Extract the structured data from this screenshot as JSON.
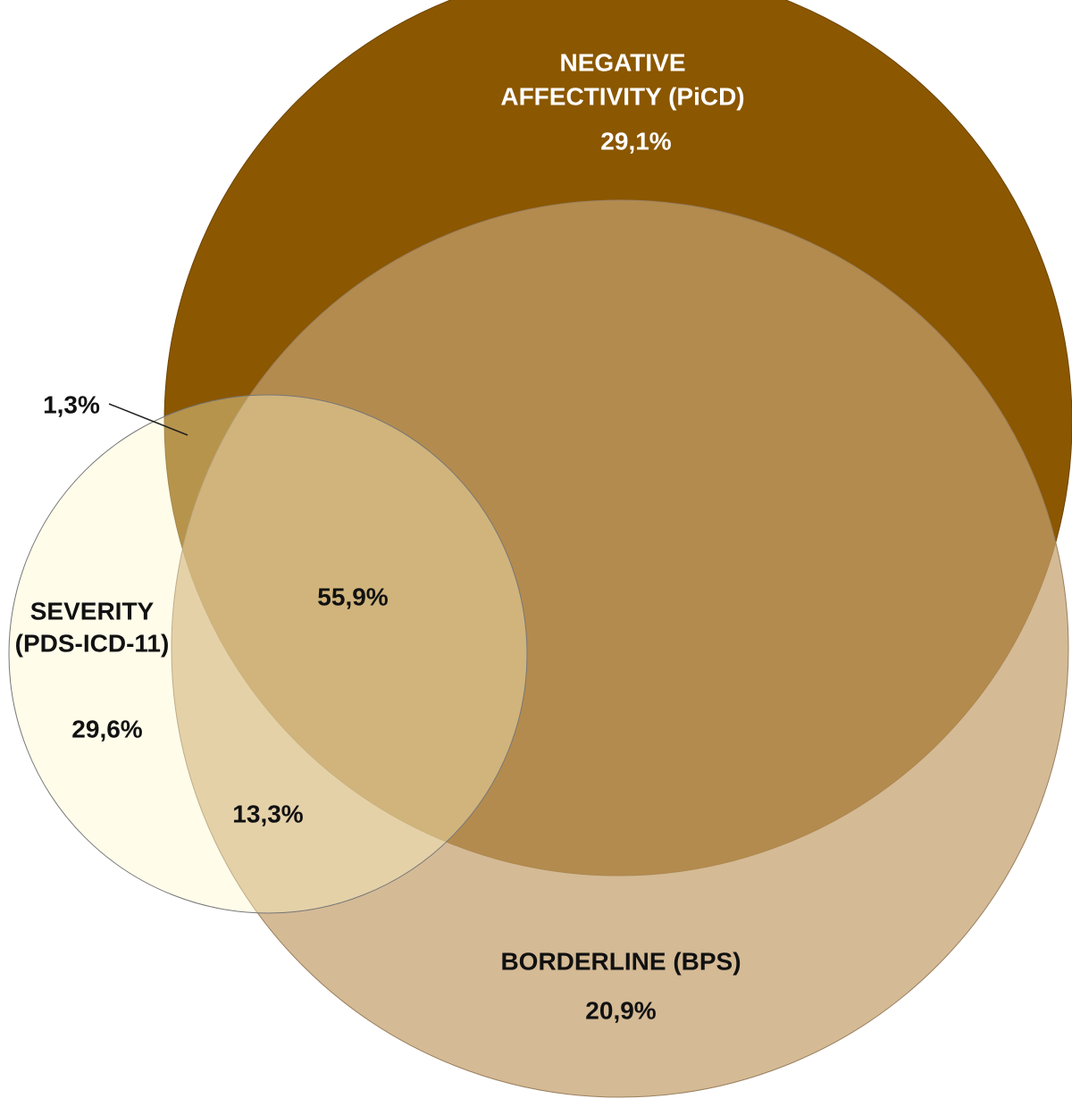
{
  "sets": [
    {
      "label_lines": [
        "NEGATIVE",
        "AFFECTIVITY (PiCD)"
      ],
      "value": "29,1%"
    },
    {
      "label_lines": [
        "SEVERITY",
        "(PDS-ICD-11)"
      ],
      "value": "29,6%"
    },
    {
      "label_lines": [
        "BORDERLINE (BPS)"
      ],
      "value": "20,9%"
    }
  ],
  "regions": {
    "affectivity_severity": "1,3%",
    "all_three": "55,9%",
    "severity_borderline": "13,3%"
  }
}
